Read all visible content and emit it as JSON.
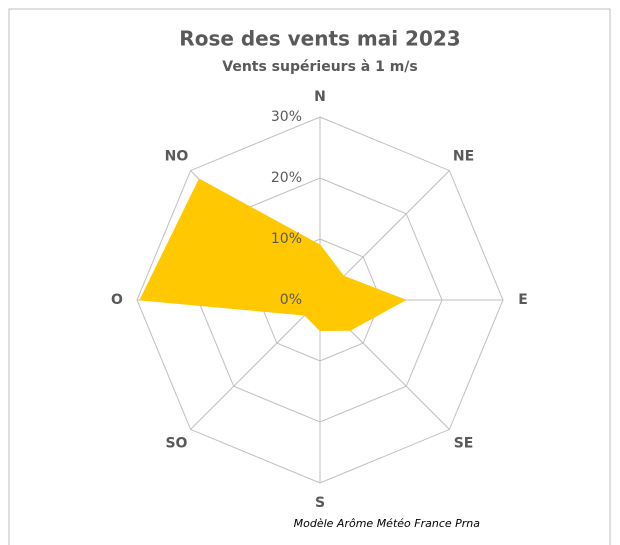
{
  "chart_data": {
    "type": "radar",
    "title": "Rose des vents mai 2023",
    "subtitle": "Vents supérieurs à 1 m/s",
    "categories": [
      "N",
      "NE",
      "E",
      "SE",
      "S",
      "SO",
      "O",
      "NO"
    ],
    "values": [
      9,
      5.5,
      14,
      7,
      5,
      3.5,
      29.5,
      28
    ],
    "color": "#FFC800",
    "ylim": [
      0,
      30
    ],
    "yticks": [
      {
        "value": 0,
        "label": "0%"
      },
      {
        "value": 10,
        "label": "10%"
      },
      {
        "value": 20,
        "label": "20%"
      },
      {
        "value": 30,
        "label": "30%"
      }
    ],
    "grid": true,
    "annotation": "Modèle Arôme Météo France Prna"
  }
}
